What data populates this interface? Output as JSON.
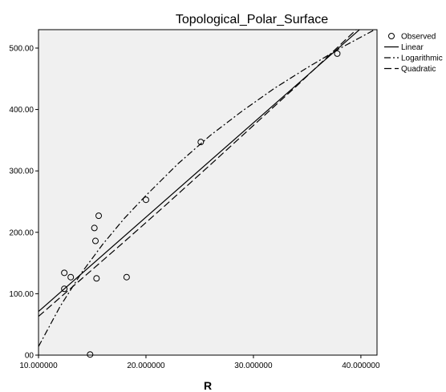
{
  "chart_data": {
    "type": "scatter",
    "title": "Topological_Polar_Surface",
    "xlabel": "R",
    "ylabel": "",
    "xlim": [
      10,
      41.5
    ],
    "ylim": [
      0,
      530
    ],
    "x_ticks": [
      10,
      20,
      30,
      40
    ],
    "x_tick_labels": [
      "10.000000",
      "20.000000",
      "30.000000",
      "40.000000"
    ],
    "y_ticks": [
      0,
      100,
      200,
      300,
      400,
      500
    ],
    "y_tick_labels": [
      "00",
      "100.00",
      "200.00",
      "300.00",
      "400.00",
      "500.00"
    ],
    "grid": false,
    "legend_position": "right",
    "series": [
      {
        "name": "Observed",
        "style": "circle",
        "points": [
          [
            12.4,
            134
          ],
          [
            12.4,
            108
          ],
          [
            13.0,
            127
          ],
          [
            14.8,
            1
          ],
          [
            15.2,
            207
          ],
          [
            15.3,
            186
          ],
          [
            15.4,
            125
          ],
          [
            15.6,
            227
          ],
          [
            18.2,
            127
          ],
          [
            20.0,
            253
          ],
          [
            25.1,
            347
          ],
          [
            37.8,
            491
          ]
        ]
      },
      {
        "name": "Linear",
        "style": "solid",
        "points": [
          [
            10,
            71
          ],
          [
            41.5,
            555
          ]
        ]
      },
      {
        "name": "Logarithmic",
        "style": "dashdot",
        "points": [
          [
            10,
            14
          ],
          [
            12,
            79
          ],
          [
            14,
            134
          ],
          [
            16,
            181
          ],
          [
            18,
            223
          ],
          [
            20,
            260
          ],
          [
            23,
            312
          ],
          [
            26,
            358
          ],
          [
            29,
            398
          ],
          [
            32,
            435
          ],
          [
            35,
            468
          ],
          [
            38,
            499
          ],
          [
            41.5,
            532
          ]
        ]
      },
      {
        "name": "Quadratic",
        "style": "dashed",
        "points": [
          [
            10,
            63
          ],
          [
            14,
            124
          ],
          [
            18,
            185
          ],
          [
            22,
            247
          ],
          [
            26,
            310
          ],
          [
            30,
            374
          ],
          [
            34,
            438
          ],
          [
            38,
            504
          ],
          [
            41.5,
            562
          ]
        ]
      }
    ]
  }
}
